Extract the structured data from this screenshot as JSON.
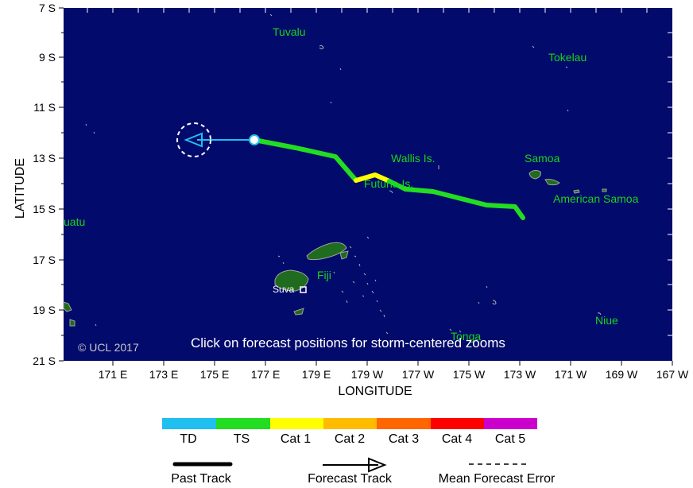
{
  "map": {
    "lat_labels": [
      "7 S",
      "9 S",
      "11 S",
      "13 S",
      "15 S",
      "17 S",
      "19 S",
      "21 S"
    ],
    "lon_labels": [
      "171 E",
      "173 E",
      "175 E",
      "177 E",
      "179 E",
      "179 W",
      "177 W",
      "175 W",
      "173 W",
      "171 W",
      "169 W",
      "167 W"
    ],
    "xlabel": "LONGITUDE",
    "ylabel": "LATITUDE",
    "places": {
      "tuvalu": "Tuvalu",
      "tokelau": "Tokelau",
      "wallis": "Wallis Is.",
      "futuna": "Futuna Is.",
      "samoa": "Samoa",
      "american_samoa": "American Samoa",
      "vanuatu": "uatu",
      "fiji": "Fiji",
      "suva": "Suva",
      "tonga": "Tonga",
      "niue": "Niue"
    },
    "note": "Click on forecast positions for storm-centered zooms",
    "copyright": "© UCL 2017"
  },
  "legend": {
    "categories": [
      "TD",
      "TS",
      "Cat 1",
      "Cat 2",
      "Cat 3",
      "Cat 4",
      "Cat 5"
    ],
    "colors": [
      "#1fbff0",
      "#22dd22",
      "#ffff00",
      "#ffbb00",
      "#ff6600",
      "#ff0000",
      "#cc00cc"
    ],
    "past_track": "Past Track",
    "forecast_track": "Forecast Track",
    "mean_error": "Mean Forecast Error"
  },
  "colors": {
    "ocean": "#020a6b",
    "land": "#1f6b1f",
    "track_ts": "#22dd22",
    "track_cat1": "#ffff00",
    "forecast": "#1fbff0"
  }
}
